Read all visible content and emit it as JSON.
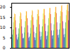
{
  "chart_data": {
    "type": "bar",
    "categories": [
      null,
      null,
      null,
      null,
      null,
      null,
      null,
      null,
      null,
      null,
      null,
      null,
      null,
      null,
      null,
      null,
      null,
      null,
      null,
      null,
      null,
      null,
      null,
      null,
      null,
      null,
      null,
      null,
      null,
      null,
      null,
      null,
      null,
      null,
      null,
      null,
      null,
      null,
      null,
      null,
      null,
      null,
      null,
      null,
      null,
      null,
      null,
      null,
      null,
      null,
      null,
      null,
      null,
      null,
      null,
      null,
      null,
      null,
      null,
      null,
      null,
      null,
      null,
      null,
      null,
      null,
      null,
      null,
      null,
      null,
      null,
      null,
      null,
      null,
      null,
      null,
      null,
      null,
      null,
      null,
      null,
      null,
      null,
      null,
      null,
      null,
      null,
      null,
      null,
      null,
      null,
      null,
      null,
      null,
      null,
      null,
      null,
      null,
      null,
      null,
      null,
      null,
      null,
      null,
      null,
      null,
      null,
      null,
      null,
      null,
      null,
      null,
      null,
      null,
      null,
      null,
      null,
      null
    ],
    "values": [
      4.2,
      4.8,
      6.5,
      9.0,
      12.5,
      15.0,
      16.8,
      16.5,
      13.5,
      10.0,
      6.5,
      4.5,
      4.0,
      5.2,
      7.0,
      9.5,
      12.0,
      15.5,
      17.5,
      17.0,
      14.0,
      10.5,
      7.0,
      4.8,
      4.5,
      5.0,
      7.5,
      10.0,
      13.0,
      15.8,
      18.0,
      17.8,
      14.5,
      11.0,
      7.5,
      5.0,
      3.5,
      5.5,
      7.0,
      9.8,
      13.5,
      16.0,
      18.5,
      18.0,
      15.0,
      11.2,
      7.8,
      5.2,
      3.8,
      5.0,
      7.2,
      10.2,
      13.8,
      16.5,
      18.8,
      18.5,
      15.5,
      11.5,
      8.0,
      5.5,
      4.0,
      5.8,
      7.8,
      10.5,
      14.0,
      16.8,
      19.0,
      19.0,
      16.0,
      11.8,
      8.2,
      5.8,
      4.2,
      6.0,
      8.0,
      11.0,
      14.5,
      17.0,
      19.5,
      19.5,
      16.5,
      12.0,
      8.5,
      6.0,
      4.5,
      6.2,
      8.5,
      11.5,
      15.0,
      17.5,
      20.0,
      20.0,
      17.0,
      12.5,
      9.0,
      6.2,
      5.0,
      6.5,
      9.0,
      12.0,
      15.5,
      18.0,
      20.5,
      20.8,
      17.5,
      13.0,
      9.5,
      6.5,
      5.2,
      6.8,
      9.5,
      12.5,
      16.0,
      18.5,
      21.0,
      21.5,
      18.0,
      13.5
    ],
    "colors": [
      "#1a3d6e",
      "#2166ac",
      "#1a9ea6",
      "#33a02c",
      "#78c440",
      "#c8d422",
      "#ffe01a",
      "#f97c00",
      "#e84c10",
      "#8b1fa8",
      "#5b2d8e",
      "#2d4fa1",
      "#1a3d6e",
      "#2166ac",
      "#1a9ea6",
      "#33a02c",
      "#78c440",
      "#c8d422",
      "#ffe01a",
      "#f97c00",
      "#e84c10",
      "#8b1fa8",
      "#5b2d8e",
      "#2d4fa1",
      "#1a3d6e",
      "#2166ac",
      "#1a9ea6",
      "#33a02c",
      "#78c440",
      "#c8d422",
      "#ffe01a",
      "#f97c00",
      "#e84c10",
      "#8b1fa8",
      "#5b2d8e",
      "#2d4fa1",
      "#1a3d6e",
      "#2166ac",
      "#1a9ea6",
      "#33a02c",
      "#78c440",
      "#c8d422",
      "#ffe01a",
      "#f97c00",
      "#e84c10",
      "#8b1fa8",
      "#5b2d8e",
      "#2d4fa1",
      "#1a3d6e",
      "#2166ac",
      "#1a9ea6",
      "#33a02c",
      "#78c440",
      "#c8d422",
      "#ffe01a",
      "#f97c00",
      "#e84c10",
      "#8b1fa8",
      "#5b2d8e",
      "#2d4fa1",
      "#1a3d6e",
      "#2166ac",
      "#1a9ea6",
      "#33a02c",
      "#78c440",
      "#c8d422",
      "#ffe01a",
      "#f97c00",
      "#e84c10",
      "#8b1fa8",
      "#5b2d8e",
      "#2d4fa1",
      "#1a3d6e",
      "#2166ac",
      "#1a9ea6",
      "#33a02c",
      "#78c440",
      "#c8d422",
      "#ffe01a",
      "#f97c00",
      "#e84c10",
      "#8b1fa8",
      "#5b2d8e",
      "#2d4fa1",
      "#1a3d6e",
      "#2166ac",
      "#1a9ea6",
      "#33a02c",
      "#78c440",
      "#c8d422",
      "#ffe01a",
      "#f97c00",
      "#e84c10",
      "#8b1fa8",
      "#5b2d8e",
      "#2d4fa1",
      "#1a3d6e",
      "#2166ac",
      "#1a9ea6",
      "#33a02c",
      "#78c440",
      "#c8d422",
      "#ffe01a",
      "#f97c00",
      "#e84c10",
      "#8b1fa8",
      "#5b2d8e",
      "#2d4fa1",
      "#1a3d6e",
      "#2166ac",
      "#1a9ea6",
      "#33a02c",
      "#78c440",
      "#c8d422",
      "#ffe01a",
      "#f97c00",
      "#e84c10",
      "#8b1fa8"
    ],
    "ylim": [
      0,
      22
    ],
    "yticks": [
      0,
      5,
      10,
      15,
      20
    ],
    "grid": false,
    "tick_labels": "y"
  }
}
